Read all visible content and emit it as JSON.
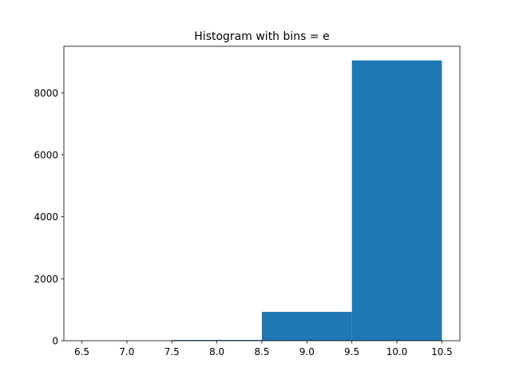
{
  "chart_data": {
    "type": "bar",
    "title": "Histogram with bins = e",
    "xlabel": "",
    "ylabel": "",
    "bins": [
      {
        "x0": 6.5,
        "x1": 7.5,
        "count": 1
      },
      {
        "x0": 7.5,
        "x1": 8.5,
        "count": 25
      },
      {
        "x0": 8.5,
        "x1": 9.5,
        "count": 930
      },
      {
        "x0": 9.5,
        "x1": 10.5,
        "count": 9044
      }
    ],
    "xlim": [
      6.3,
      10.7
    ],
    "ylim": [
      0,
      9500
    ],
    "x_ticks": [
      6.5,
      7.0,
      7.5,
      8.0,
      8.5,
      9.0,
      9.5,
      10.0,
      10.5
    ],
    "x_tick_labels": [
      "6.5",
      "7.0",
      "7.5",
      "8.0",
      "8.5",
      "9.0",
      "9.5",
      "10.0",
      "10.5"
    ],
    "y_ticks": [
      0,
      2000,
      4000,
      6000,
      8000
    ],
    "y_tick_labels": [
      "0",
      "2000",
      "4000",
      "6000",
      "8000"
    ],
    "bar_color": "#1f77b4",
    "grid": false,
    "legend": "none"
  }
}
